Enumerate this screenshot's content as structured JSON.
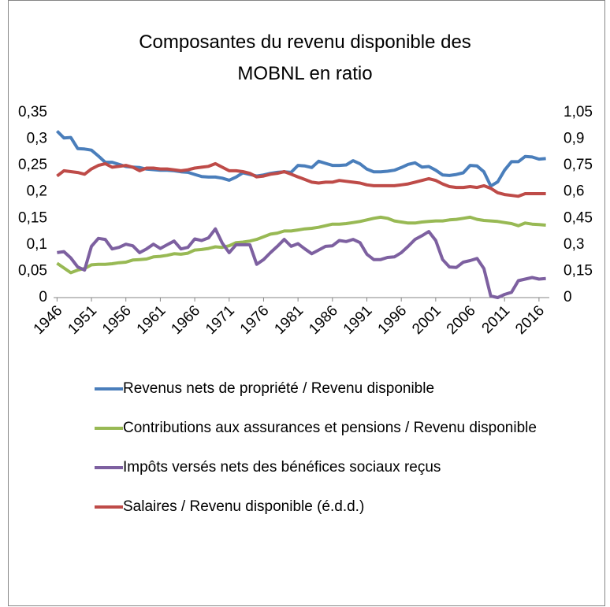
{
  "chart_data": {
    "type": "line",
    "title": "Composantes du revenu disponible des MOBNL en ratio",
    "categories": [
      "1946",
      null,
      null,
      null,
      null,
      "1951",
      null,
      null,
      null,
      null,
      "1956",
      null,
      null,
      null,
      null,
      "1961",
      null,
      null,
      null,
      null,
      "1966",
      null,
      null,
      null,
      null,
      "1971",
      null,
      null,
      null,
      null,
      "1976",
      null,
      null,
      null,
      null,
      "1981",
      null,
      null,
      null,
      null,
      "1986",
      null,
      null,
      null,
      null,
      "1991",
      null,
      null,
      null,
      null,
      "1996",
      null,
      null,
      null,
      null,
      "2001",
      null,
      null,
      null,
      null,
      "2006",
      null,
      null,
      null,
      null,
      "2011",
      null,
      null,
      null,
      null,
      "2016",
      null
    ],
    "series": [
      {
        "name": "Revenus nets de propriété / Revenu disponible",
        "color": "#4a7ebb",
        "values": [
          0.315,
          0.302,
          0.303,
          0.282,
          0.281,
          0.279,
          0.268,
          0.256,
          0.256,
          0.252,
          0.248,
          0.247,
          0.246,
          0.243,
          0.242,
          0.241,
          0.241,
          0.24,
          0.238,
          0.237,
          0.233,
          0.229,
          0.228,
          0.228,
          0.226,
          0.222,
          0.228,
          0.236,
          0.233,
          0.23,
          0.232,
          0.235,
          0.237,
          0.238,
          0.237,
          0.25,
          0.249,
          0.246,
          0.258,
          0.254,
          0.25,
          0.25,
          0.251,
          0.259,
          0.253,
          0.243,
          0.238,
          0.238,
          0.239,
          0.241,
          0.246,
          0.252,
          0.255,
          0.247,
          0.248,
          0.241,
          0.232,
          0.231,
          0.233,
          0.236,
          0.25,
          0.249,
          0.238,
          0.211,
          0.219,
          0.241,
          0.257,
          0.257,
          0.267,
          0.266,
          0.262,
          0.263
        ]
      },
      {
        "name": "Contributions aux assurances et pensions / Revenu disponible",
        "color": "#98b954",
        "values": [
          0.065,
          0.056,
          0.047,
          0.052,
          0.055,
          0.062,
          0.063,
          0.063,
          0.064,
          0.066,
          0.067,
          0.071,
          0.072,
          0.073,
          0.077,
          0.078,
          0.08,
          0.083,
          0.082,
          0.084,
          0.09,
          0.091,
          0.093,
          0.096,
          0.095,
          0.098,
          0.104,
          0.105,
          0.107,
          0.11,
          0.115,
          0.12,
          0.122,
          0.126,
          0.126,
          0.128,
          0.13,
          0.131,
          0.133,
          0.136,
          0.139,
          0.139,
          0.14,
          0.142,
          0.144,
          0.147,
          0.15,
          0.152,
          0.15,
          0.145,
          0.143,
          0.141,
          0.141,
          0.143,
          0.144,
          0.145,
          0.145,
          0.147,
          0.148,
          0.15,
          0.152,
          0.148,
          0.146,
          0.145,
          0.144,
          0.142,
          0.14,
          0.136,
          0.141,
          0.139,
          0.138,
          0.137
        ]
      },
      {
        "name": "Impôts versés nets des bénéfices sociaux reçus",
        "color": "#7d60a0",
        "values": [
          0.085,
          0.087,
          0.075,
          0.058,
          0.052,
          0.097,
          0.112,
          0.11,
          0.092,
          0.095,
          0.101,
          0.098,
          0.085,
          0.092,
          0.101,
          0.093,
          0.1,
          0.107,
          0.092,
          0.095,
          0.111,
          0.108,
          0.113,
          0.13,
          0.103,
          0.085,
          0.1,
          0.1,
          0.1,
          0.063,
          0.072,
          0.085,
          0.097,
          0.11,
          0.097,
          0.102,
          0.092,
          0.083,
          0.09,
          0.097,
          0.098,
          0.108,
          0.106,
          0.11,
          0.104,
          0.082,
          0.072,
          0.072,
          0.076,
          0.077,
          0.085,
          0.097,
          0.11,
          0.117,
          0.125,
          0.108,
          0.072,
          0.058,
          0.057,
          0.067,
          0.07,
          0.074,
          0.055,
          0.003,
          0,
          0.006,
          0.01,
          0.032,
          0.035,
          0.038,
          0.035,
          0.036
        ]
      },
      {
        "name": "Salaires / Revenu disponible (é.d.d.)",
        "color": "#be4b48",
        "axis": "y2",
        "values": [
          0.69,
          0.72,
          0.715,
          0.71,
          0.7,
          0.73,
          0.75,
          0.76,
          0.74,
          0.745,
          0.75,
          0.74,
          0.72,
          0.735,
          0.735,
          0.73,
          0.73,
          0.725,
          0.72,
          0.725,
          0.735,
          0.74,
          0.745,
          0.76,
          0.74,
          0.72,
          0.72,
          0.715,
          0.705,
          0.685,
          0.69,
          0.7,
          0.705,
          0.715,
          0.7,
          0.685,
          0.67,
          0.655,
          0.65,
          0.655,
          0.655,
          0.665,
          0.66,
          0.655,
          0.65,
          0.64,
          0.635,
          0.635,
          0.635,
          0.635,
          0.64,
          0.645,
          0.655,
          0.665,
          0.675,
          0.665,
          0.645,
          0.63,
          0.625,
          0.625,
          0.63,
          0.625,
          0.635,
          0.62,
          0.595,
          0.585,
          0.58,
          0.575,
          0.59,
          0.59,
          0.59,
          0.59
        ]
      }
    ],
    "ylim": [
      0,
      0.35
    ],
    "yticks": [
      0,
      {
        "value": 0.05,
        "label": "0,05"
      },
      {
        "value": 0.1,
        "label": "0,1"
      },
      {
        "value": 0.15,
        "label": "0,15"
      },
      {
        "value": 0.2,
        "label": "0,2"
      },
      {
        "value": 0.25,
        "label": "0,25"
      },
      {
        "value": 0.3,
        "label": "0,3"
      },
      {
        "value": 0.35,
        "label": "0,35"
      }
    ],
    "y2lim": [
      0,
      1.05
    ],
    "y2ticks": [
      0,
      {
        "value": 0.15,
        "label": "0,15"
      },
      {
        "value": 0.3,
        "label": "0,3"
      },
      {
        "value": 0.45,
        "label": "0,45"
      },
      {
        "value": 0.6,
        "label": "0,6"
      },
      {
        "value": 0.75,
        "label": "0,75"
      },
      {
        "value": 0.9,
        "label": "0,9"
      },
      {
        "value": 1.05,
        "label": "1,05"
      }
    ],
    "legend": "bottom",
    "grid": false
  }
}
